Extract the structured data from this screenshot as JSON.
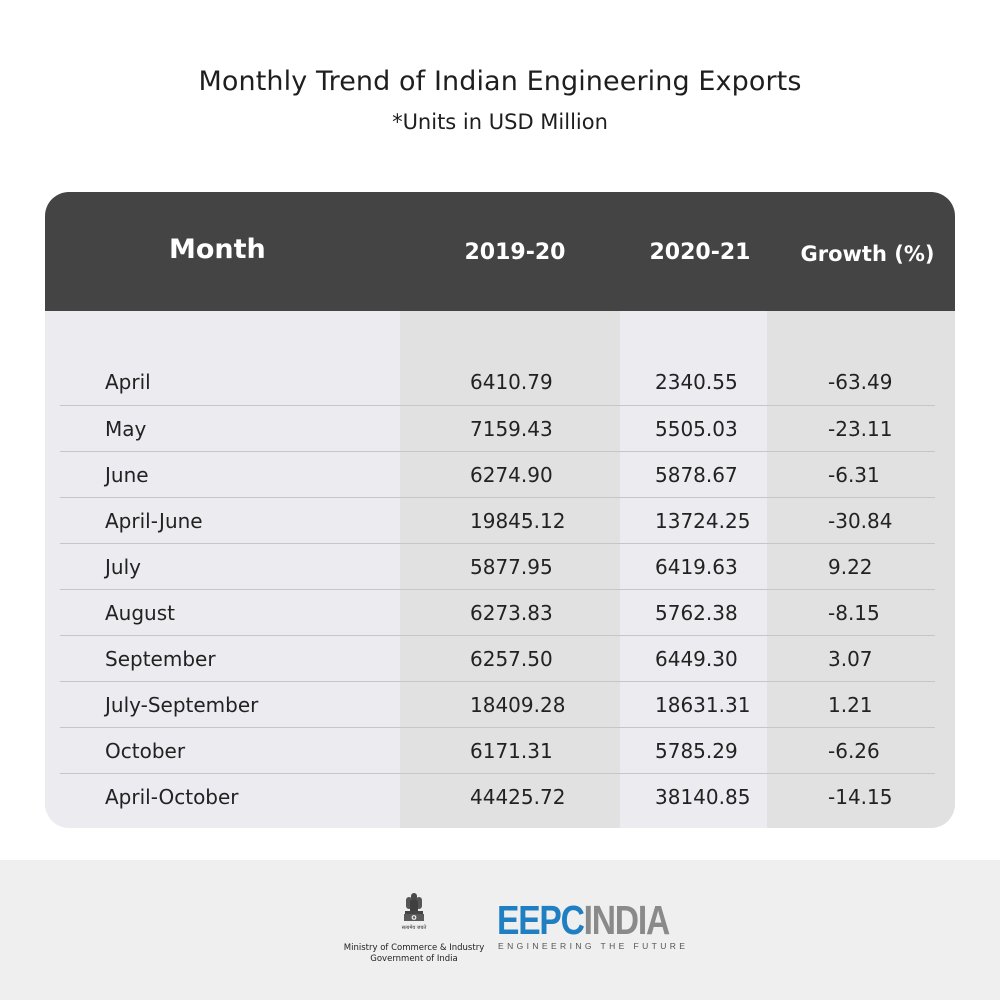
{
  "header": {
    "title": "Monthly Trend of Indian Engineering Exports",
    "subtitle": "*Units in USD Million"
  },
  "chart_data": {
    "type": "table",
    "title": "Monthly Trend of Indian Engineering Exports",
    "subtitle": "*Units in USD Million",
    "columns": [
      "Month",
      "2019-20",
      "2020-21",
      "Growth (%)"
    ],
    "rows": [
      [
        "April",
        "6410.79",
        "2340.55",
        "-63.49"
      ],
      [
        "May",
        "7159.43",
        "5505.03",
        "-23.11"
      ],
      [
        "June",
        "6274.90",
        "5878.67",
        "-6.31"
      ],
      [
        "April-June",
        "19845.12",
        "13724.25",
        "-30.84"
      ],
      [
        "July",
        "5877.95",
        "6419.63",
        "9.22"
      ],
      [
        "August",
        "6273.83",
        "5762.38",
        "-8.15"
      ],
      [
        "September",
        "6257.50",
        "6449.30",
        "3.07"
      ],
      [
        "July-September",
        "18409.28",
        "18631.31",
        "1.21"
      ],
      [
        "October",
        "6171.31",
        "5785.29",
        "-6.26"
      ],
      [
        "April-October",
        "44425.72",
        "38140.85",
        "-14.15"
      ]
    ]
  },
  "footer": {
    "emblem_motto": "सत्यमेव जयते",
    "ministry_line1": "Ministry of Commerce & Industry",
    "ministry_line2": "Government of India",
    "brand_part1": "EEPC",
    "brand_part2": "INDIA",
    "brand_tagline": "ENGINEERING THE FUTURE"
  },
  "colors": {
    "header_bg": "#444444",
    "body_bg": "#ebebf0",
    "shade_col": "#e1e1e1",
    "brand_blue": "#1f7fc2",
    "brand_grey": "#8a8a8a"
  }
}
